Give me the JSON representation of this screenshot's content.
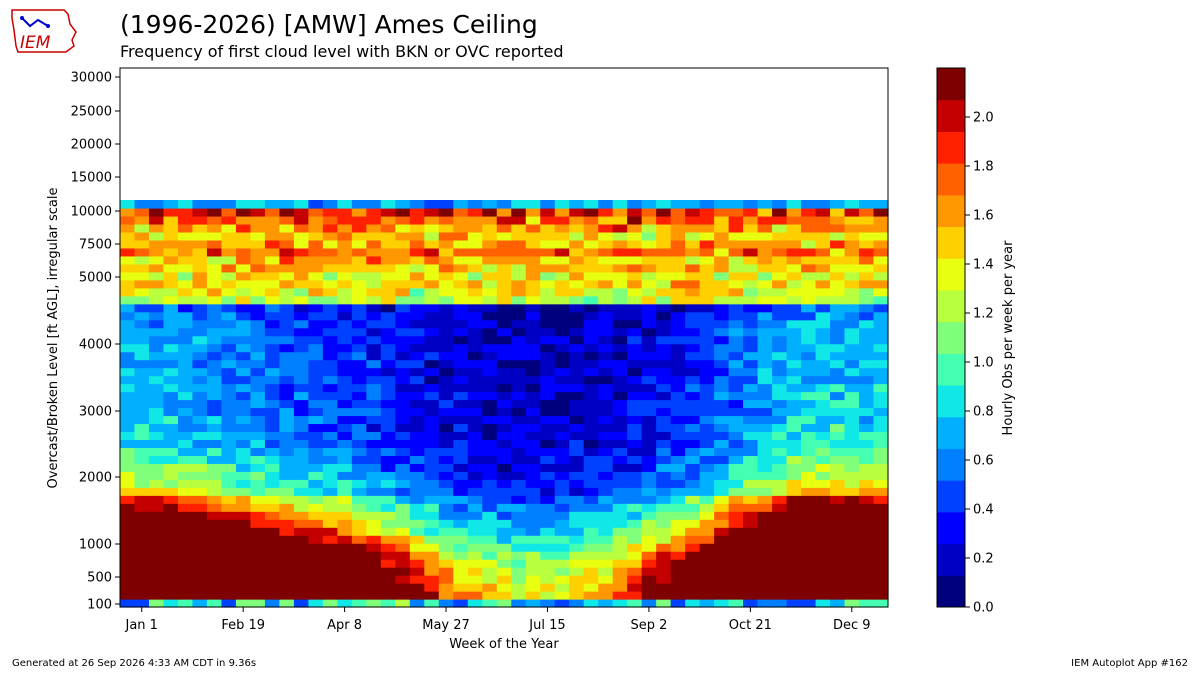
{
  "header": {
    "title": "(1996-2026) [AMW] Ames Ceiling",
    "subtitle": "Frequency of first cloud level with BKN or OVC reported",
    "logo_text": "IEM"
  },
  "footer": {
    "generated": "Generated at 26 Sep 2026 4:33 AM CDT in 9.36s",
    "app": "IEM Autoplot App #162"
  },
  "chart_data": {
    "type": "heatmap",
    "xlabel": "Week of the Year",
    "ylabel": "Overcast/Broken Level [ft AGL], irregular scale",
    "colorbar_label": "Hourly Obs per week per year",
    "x_ticks": [
      "Jan 1",
      "Feb 19",
      "Apr 8",
      "May 27",
      "Jul 15",
      "Sep 2",
      "Oct 21",
      "Dec 9"
    ],
    "y_ticks": [
      "100",
      "500",
      "1000",
      "2000",
      "3000",
      "4000",
      "5000",
      "7500",
      "10000",
      "15000",
      "20000",
      "25000",
      "30000"
    ],
    "colorbar_ticks": [
      "0.0",
      "0.2",
      "0.4",
      "0.6",
      "0.8",
      "1.0",
      "1.2",
      "1.4",
      "1.6",
      "1.8",
      "2.0"
    ],
    "colorbar_range": [
      0,
      2.2
    ],
    "colorbar_colors": [
      "#00007f",
      "#0000c4",
      "#0000ff",
      "#0040ff",
      "#0080ff",
      "#00b0ff",
      "#10e8e8",
      "#44ffb2",
      "#80ff7a",
      "#b8ff40",
      "#e8ff0f",
      "#ffd000",
      "#ff9800",
      "#ff6000",
      "#ff2000",
      "#c40000",
      "#7f0000"
    ],
    "weeks": 53,
    "row_profile": [
      1.2,
      2.0,
      1.9,
      1.8,
      1.7,
      1.6,
      1.5,
      1.35,
      1.2,
      1.05,
      0.95,
      0.85,
      0.78,
      0.72,
      0.66,
      0.6,
      0.55,
      0.5,
      0.46,
      0.43,
      0.4,
      0.38,
      0.37,
      0.36,
      0.35,
      0.34,
      0.34,
      0.34,
      0.33,
      0.33,
      0.33,
      0.32,
      0.32,
      0.32,
      0.31,
      0.3,
      0.28,
      0.26,
      1.25,
      1.35,
      1.45,
      1.35,
      1.5,
      1.5,
      1.7,
      1.55,
      1.45,
      1.6,
      1.75,
      1.9,
      0.7
    ],
    "seasonal_profile": [
      1.35,
      1.35,
      1.3,
      1.3,
      1.25,
      1.25,
      1.2,
      1.15,
      1.1,
      1.05,
      1.0,
      0.95,
      0.9,
      0.88,
      0.85,
      0.8,
      0.75,
      0.7,
      0.65,
      0.6,
      0.55,
      0.5,
      0.45,
      0.42,
      0.4,
      0.38,
      0.36,
      0.35,
      0.35,
      0.35,
      0.36,
      0.38,
      0.4,
      0.42,
      0.45,
      0.5,
      0.55,
      0.6,
      0.65,
      0.7,
      0.8,
      0.9,
      1.0,
      1.1,
      1.2,
      1.3,
      1.4,
      1.45,
      1.5,
      1.5,
      1.45,
      1.4,
      1.4
    ]
  }
}
